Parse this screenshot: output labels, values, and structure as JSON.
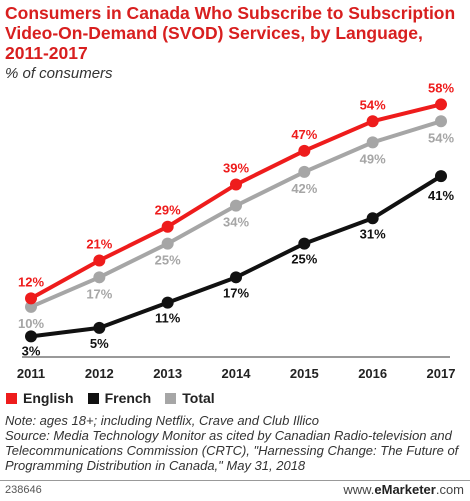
{
  "title": "Consumers in Canada Who Subscribe to Subscription Video-On-Demand (SVOD) Services, by Language, 2011-2017",
  "subtitle": "% of consumers",
  "notes": {
    "note": "Note: ages 18+; including Netflix, Crave and Club Illico",
    "source": "Source: Media Technology Monitor as cited by Canadian Radio-television and Telecommunications Commission (CRTC), \"Harnessing Change: The Future of Programming Distribution in Canada,\" May 31, 2018"
  },
  "footer": {
    "id": "238646",
    "brand_prefix": "www.",
    "brand_name": "eMarketer",
    "brand_suffix": ".com"
  },
  "colors": {
    "english": "#ee1c1c",
    "french": "#111111",
    "total": "#a6a6a6",
    "title": "#d81f1f"
  },
  "chart_data": {
    "type": "line",
    "x": [
      "2011",
      "2012",
      "2013",
      "2014",
      "2015",
      "2016",
      "2017"
    ],
    "series": [
      {
        "name": "English",
        "values": [
          12,
          21,
          29,
          39,
          47,
          54,
          58
        ],
        "labels": [
          "12%",
          "21%",
          "29%",
          "39%",
          "47%",
          "54%",
          "58%"
        ],
        "color": "#ee1c1c"
      },
      {
        "name": "French",
        "values": [
          3,
          5,
          11,
          17,
          25,
          31,
          41
        ],
        "labels": [
          "3%",
          "5%",
          "11%",
          "17%",
          "25%",
          "31%",
          "41%"
        ],
        "color": "#111111"
      },
      {
        "name": "Total",
        "values": [
          10,
          17,
          25,
          34,
          42,
          49,
          54
        ],
        "labels": [
          "10%",
          "17%",
          "25%",
          "34%",
          "42%",
          "49%",
          "54%"
        ],
        "color": "#a6a6a6"
      }
    ],
    "ylim": [
      0,
      60
    ],
    "grid": false,
    "legend": "bottom-left"
  }
}
